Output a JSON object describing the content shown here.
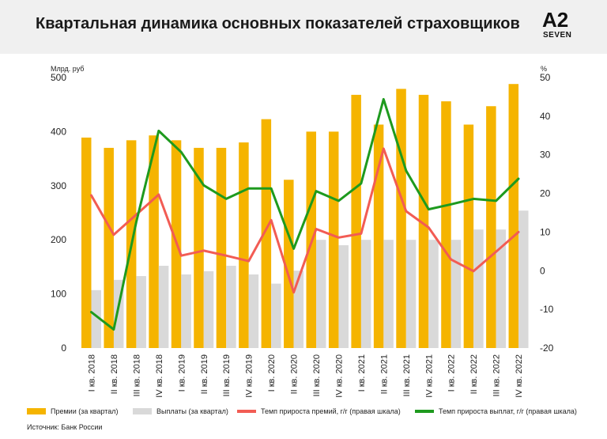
{
  "header": {
    "title": "Квартальная динамика основных показателей страховщиков",
    "logo_top": "A2",
    "logo_bottom": "SEVEN"
  },
  "source": "Источник: Банк России",
  "colors": {
    "premiums": "#f5b400",
    "payouts": "#d9d9d9",
    "premium_growth": "#f25c54",
    "payout_growth": "#1e9a1e",
    "header_bg": "#f0f0f0"
  },
  "chart_data": {
    "type": "bar",
    "title": "Квартальная динамика основных показателей страховщиков",
    "ylabel_left": "Млрд. руб",
    "ylabel_right": "%",
    "ylim_left": [
      0,
      500
    ],
    "ylim_right": [
      -20,
      50
    ],
    "yticks_left": [
      "0",
      "100",
      "200",
      "300",
      "400",
      "500"
    ],
    "yticks_right": [
      "-20",
      "-10",
      "0",
      "10",
      "20",
      "30",
      "40",
      "50"
    ],
    "grid": false,
    "legend_position": "bottom",
    "categories": [
      "I кв. 2018",
      "II кв. 2018",
      "III кв. 2018",
      "IV кв. 2018",
      "I кв. 2019",
      "II кв. 2019",
      "III кв. 2019",
      "IV кв. 2019",
      "I кв. 2020",
      "II кв. 2020",
      "III кв. 2020",
      "IV кв. 2020",
      "I кв. 2021",
      "II кв. 2021",
      "III кв. 2021",
      "IV кв. 2021",
      "I кв. 2022",
      "II кв. 2022",
      "III кв. 2022",
      "IV кв. 2022"
    ],
    "series": [
      {
        "name": "Премии (за квартал)",
        "type": "bar",
        "axis": "left",
        "values": [
          389,
          370,
          384,
          393,
          384,
          370,
          370,
          380,
          423,
          311,
          400,
          400,
          468,
          413,
          479,
          468,
          456,
          413,
          447,
          488
        ]
      },
      {
        "name": "Выплаты (за квартал)",
        "type": "bar",
        "axis": "left",
        "values": [
          107,
          126,
          133,
          152,
          136,
          142,
          152,
          136,
          119,
          143,
          200,
          190,
          200,
          200,
          200,
          200,
          200,
          219,
          219,
          254
        ]
      },
      {
        "name": "Темп прироста премий, г/г  (правая шкала)",
        "type": "line",
        "axis": "right",
        "values": [
          19.5,
          9.3,
          14.5,
          19.7,
          3.9,
          5.2,
          3.9,
          2.5,
          13.1,
          -5.6,
          10.8,
          8.6,
          9.6,
          31.6,
          15.4,
          11.2,
          2.9,
          -0.1,
          4.9,
          10
        ]
      },
      {
        "name": "Темп прироста выплат, г/г  (правая шкала)",
        "type": "line",
        "axis": "right",
        "values": [
          -10.7,
          -15.2,
          12.6,
          36.2,
          30.7,
          22.1,
          18.6,
          21.3,
          21.3,
          5.7,
          20.6,
          18.1,
          22.6,
          44.4,
          25.9,
          15.9,
          17.2,
          18.6,
          18.1,
          23.8
        ]
      }
    ]
  }
}
